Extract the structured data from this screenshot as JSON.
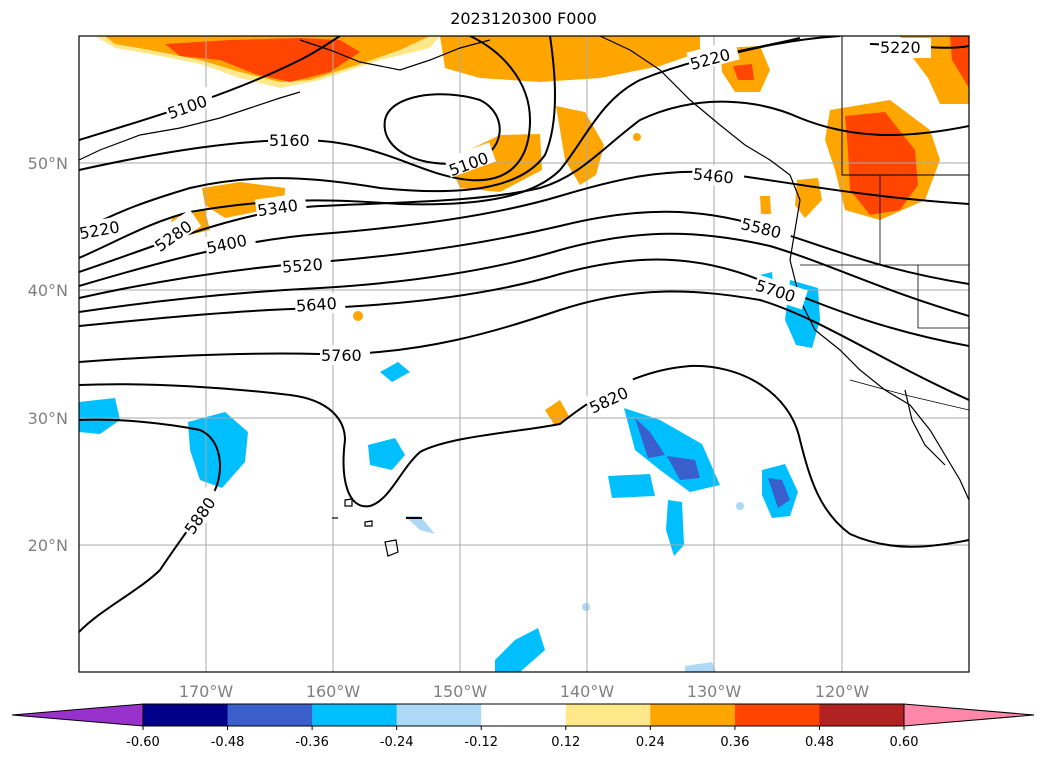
{
  "title": "2023120300 F000",
  "map": {
    "lat_ticks": [
      {
        "value": 50,
        "label": "50°N"
      },
      {
        "value": 40,
        "label": "40°N"
      },
      {
        "value": 30,
        "label": "30°N"
      },
      {
        "value": 20,
        "label": "20°N"
      }
    ],
    "lon_ticks": [
      {
        "value": -170,
        "label": "170°W"
      },
      {
        "value": -160,
        "label": "160°W"
      },
      {
        "value": -150,
        "label": "150°W"
      },
      {
        "value": -140,
        "label": "140°W"
      },
      {
        "value": -130,
        "label": "130°W"
      },
      {
        "value": -120,
        "label": "120°W"
      }
    ],
    "contour_labels": [
      "5100",
      "5100",
      "5160",
      "5220",
      "5220",
      "5220",
      "5280",
      "5340",
      "5400",
      "5460",
      "5520",
      "5580",
      "5640",
      "5700",
      "5760",
      "5820",
      "5880"
    ]
  },
  "colorbar": {
    "levels": [
      "-0.60",
      "-0.48",
      "-0.36",
      "-0.24",
      "-0.12",
      "0.12",
      "0.24",
      "0.36",
      "0.48",
      "0.60"
    ],
    "colors": [
      "#9932cc",
      "#00008b",
      "#3a5fcd",
      "#00bfff",
      "#add8f6",
      "#ffffff",
      "#ffe88a",
      "#ffa500",
      "#ff4500",
      "#b22222",
      "#ff88aa"
    ]
  }
}
